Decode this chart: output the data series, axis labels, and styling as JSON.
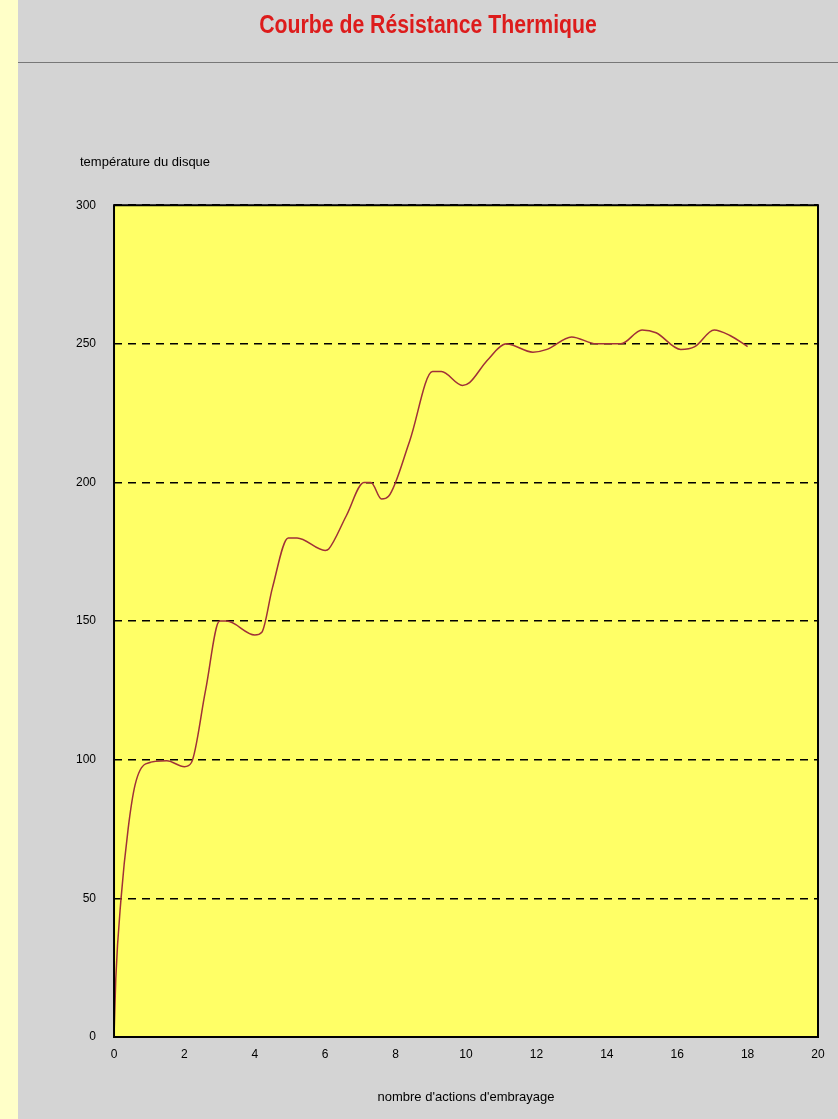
{
  "chart_data": {
    "type": "line",
    "title": "Courbe de Résistance Thermique",
    "xlabel": "nombre d'actions d'embrayage",
    "ylabel": "température du disque",
    "x": [
      0,
      0.05,
      0.2,
      0.4,
      0.6,
      0.9,
      1.5,
      2.0,
      2.2,
      2.6,
      3.0,
      3.2,
      4.0,
      4.2,
      4.5,
      4.95,
      5.2,
      6.0,
      6.1,
      6.6,
      7.1,
      7.3,
      7.6,
      7.8,
      8.4,
      9.05,
      9.3,
      9.9,
      10.1,
      10.6,
      11.15,
      11.9,
      12.3,
      13.0,
      13.7,
      14.4,
      15.0,
      15.4,
      16.1,
      16.5,
      17.05,
      17.5,
      18.0
    ],
    "series": [
      {
        "color": "#a03038",
        "values": [
          0,
          21,
          50,
          75,
          91,
          98.5,
          99.6,
          97.5,
          99,
          125,
          150,
          150,
          145,
          146,
          162,
          180,
          180,
          175.5,
          176,
          188,
          200,
          200,
          194,
          195,
          215,
          240,
          240,
          235,
          236,
          244,
          250,
          247,
          248,
          252.5,
          250,
          250,
          255,
          254,
          248,
          249,
          255,
          253,
          249
        ]
      }
    ],
    "xlim": [
      0,
      20
    ],
    "xticks": [
      0,
      2,
      4,
      6,
      8,
      10,
      12,
      14,
      16,
      18,
      20
    ],
    "ylim": [
      0,
      300
    ],
    "yticks": [
      0,
      50,
      100,
      150,
      200,
      250,
      300
    ],
    "grid": "y",
    "legend": false,
    "marker": "none",
    "line_style": "solid"
  }
}
